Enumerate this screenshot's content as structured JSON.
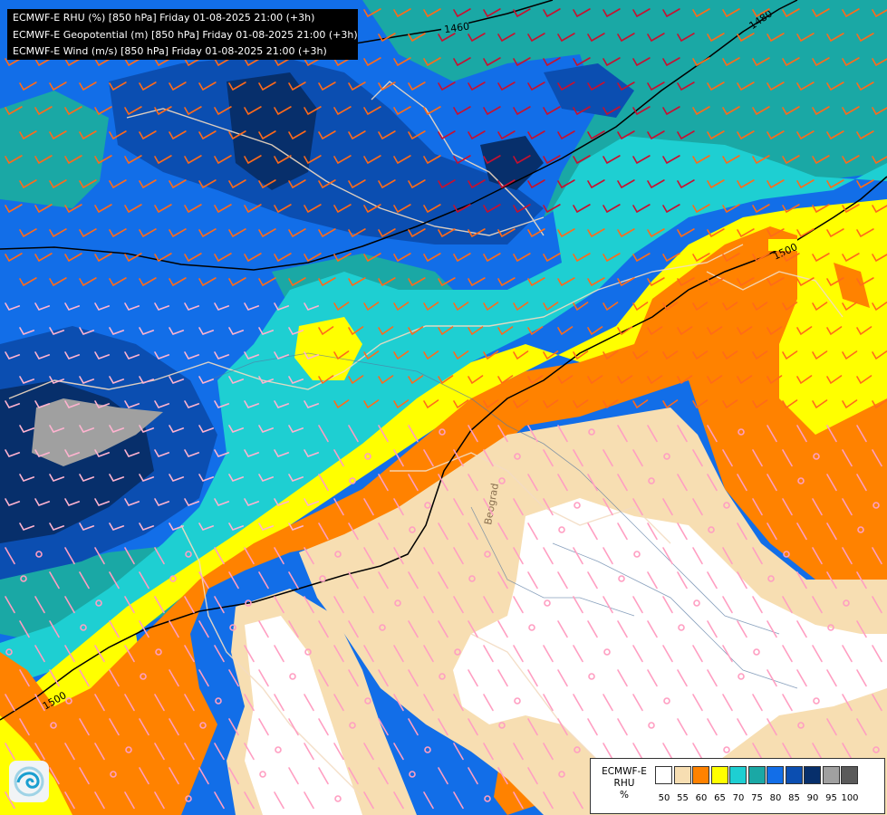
{
  "header": {
    "lines": [
      "ECMWF-E RHU (%) [850 hPa] Friday 01-08-2025 21:00 (+3h)",
      "ECMWF-E Geopotential (m) [850 hPa] Friday 01-08-2025 21:00 (+3h)",
      "ECMWF-E Wind (m/s) [850 hPa] Friday 01-08-2025 21:00 (+3h)"
    ]
  },
  "map": {
    "place_label": "Beograd",
    "contour_labels": [
      "1460",
      "1480",
      "1500",
      "1500"
    ]
  },
  "legend": {
    "title_lines": [
      "ECMWF-E",
      "RHU",
      "%"
    ],
    "classes": [
      {
        "label": "50",
        "color": "#ffffff"
      },
      {
        "label": "55",
        "color": "#f7deb2"
      },
      {
        "label": "60",
        "color": "#ff8200"
      },
      {
        "label": "65",
        "color": "#ffff00"
      },
      {
        "label": "70",
        "color": "#1ecfd2"
      },
      {
        "label": "75",
        "color": "#1aa8a5"
      },
      {
        "label": "80",
        "color": "#126ee8"
      },
      {
        "label": "85",
        "color": "#0b4eb1"
      },
      {
        "label": "90",
        "color": "#072f6b"
      },
      {
        "label": "95",
        "color": "#a0a0a0"
      },
      {
        "label": "100",
        "color": "#5a5a5a"
      }
    ]
  },
  "logo": {
    "icon": "ecmwf-swirl-icon"
  }
}
